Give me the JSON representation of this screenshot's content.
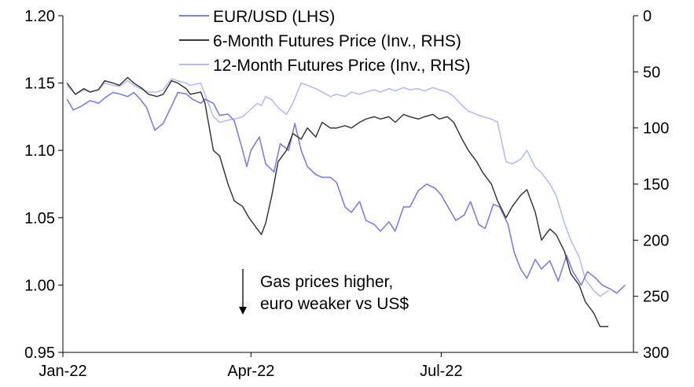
{
  "chart_data": {
    "type": "line",
    "x_axis": {
      "ticks": [
        {
          "date": "2022-01-01",
          "label": "Jan-22"
        },
        {
          "date": "2022-04-01",
          "label": "Apr-22"
        },
        {
          "date": "2022-07-01",
          "label": "Jul-22"
        }
      ],
      "range": [
        "2022-01-01",
        "2022-10-01"
      ]
    },
    "y_left": {
      "ticks": [
        "1.20",
        "1.15",
        "1.10",
        "1.05",
        "1.00",
        "0.95"
      ],
      "range": [
        0.95,
        1.2
      ]
    },
    "y_right": {
      "inverted": true,
      "ticks": [
        "0",
        "50",
        "100",
        "150",
        "200",
        "250",
        "300"
      ],
      "range": [
        0,
        300
      ]
    },
    "grid": false,
    "legend_position": "top",
    "colors": {
      "eurusd": "#7b7fe6",
      "fut6": "#3a3a3a",
      "fut12": "#b9bcf4",
      "axis": "#000000"
    },
    "series": [
      {
        "name": "EUR/USD (LHS)",
        "axis": "left",
        "points": [
          [
            "2022-01-03",
            1.138
          ],
          [
            "2022-01-06",
            1.13
          ],
          [
            "2022-01-10",
            1.133
          ],
          [
            "2022-01-14",
            1.137
          ],
          [
            "2022-01-18",
            1.135
          ],
          [
            "2022-01-22",
            1.14
          ],
          [
            "2022-01-25",
            1.143
          ],
          [
            "2022-01-28",
            1.142
          ],
          [
            "2022-02-01",
            1.14
          ],
          [
            "2022-02-04",
            1.143
          ],
          [
            "2022-02-07",
            1.138
          ],
          [
            "2022-02-10",
            1.132
          ],
          [
            "2022-02-14",
            1.115
          ],
          [
            "2022-02-18",
            1.12
          ],
          [
            "2022-02-22",
            1.133
          ],
          [
            "2022-02-25",
            1.143
          ],
          [
            "2022-03-01",
            1.142
          ],
          [
            "2022-03-04",
            1.138
          ],
          [
            "2022-03-08",
            1.135
          ],
          [
            "2022-03-10",
            1.138
          ],
          [
            "2022-03-14",
            1.135
          ],
          [
            "2022-03-17",
            1.126
          ],
          [
            "2022-03-21",
            1.127
          ],
          [
            "2022-03-24",
            1.122
          ],
          [
            "2022-03-28",
            1.1
          ],
          [
            "2022-03-30",
            1.088
          ],
          [
            "2022-04-01",
            1.1
          ],
          [
            "2022-04-05",
            1.11
          ],
          [
            "2022-04-08",
            1.09
          ],
          [
            "2022-04-12",
            1.084
          ],
          [
            "2022-04-15",
            1.105
          ],
          [
            "2022-04-19",
            1.1
          ],
          [
            "2022-04-22",
            1.12
          ],
          [
            "2022-04-25",
            1.1
          ],
          [
            "2022-04-28",
            1.088
          ],
          [
            "2022-05-02",
            1.082
          ],
          [
            "2022-05-05",
            1.08
          ],
          [
            "2022-05-09",
            1.08
          ],
          [
            "2022-05-12",
            1.076
          ],
          [
            "2022-05-16",
            1.058
          ],
          [
            "2022-05-19",
            1.054
          ],
          [
            "2022-05-23",
            1.062
          ],
          [
            "2022-05-26",
            1.048
          ],
          [
            "2022-05-30",
            1.045
          ],
          [
            "2022-06-02",
            1.04
          ],
          [
            "2022-06-06",
            1.047
          ],
          [
            "2022-06-09",
            1.04
          ],
          [
            "2022-06-13",
            1.058
          ],
          [
            "2022-06-16",
            1.058
          ],
          [
            "2022-06-20",
            1.07
          ],
          [
            "2022-06-24",
            1.075
          ],
          [
            "2022-06-28",
            1.072
          ],
          [
            "2022-07-01",
            1.067
          ],
          [
            "2022-07-05",
            1.056
          ],
          [
            "2022-07-08",
            1.048
          ],
          [
            "2022-07-12",
            1.052
          ],
          [
            "2022-07-15",
            1.062
          ],
          [
            "2022-07-19",
            1.045
          ],
          [
            "2022-07-22",
            1.042
          ],
          [
            "2022-07-26",
            1.06
          ],
          [
            "2022-07-29",
            1.058
          ],
          [
            "2022-08-02",
            1.045
          ],
          [
            "2022-08-05",
            1.024
          ],
          [
            "2022-08-08",
            1.012
          ],
          [
            "2022-08-11",
            1.005
          ],
          [
            "2022-08-15",
            1.019
          ],
          [
            "2022-08-18",
            1.012
          ],
          [
            "2022-08-22",
            1.018
          ],
          [
            "2022-08-26",
            1.003
          ],
          [
            "2022-08-30",
            1.022
          ],
          [
            "2022-09-02",
            1.01
          ],
          [
            "2022-09-06",
            1.0
          ],
          [
            "2022-09-09",
            1.01
          ],
          [
            "2022-09-13",
            1.005
          ],
          [
            "2022-09-16",
            1.0
          ],
          [
            "2022-09-20",
            0.997
          ],
          [
            "2022-09-23",
            0.994
          ],
          [
            "2022-09-27",
            1.0
          ]
        ]
      },
      {
        "name": "6-Month Futures Price (Inv., RHS)",
        "axis": "right",
        "points": [
          [
            "2022-01-03",
            60
          ],
          [
            "2022-01-07",
            70
          ],
          [
            "2022-01-11",
            65
          ],
          [
            "2022-01-14",
            68
          ],
          [
            "2022-01-18",
            66
          ],
          [
            "2022-01-21",
            58
          ],
          [
            "2022-01-25",
            60
          ],
          [
            "2022-01-28",
            62
          ],
          [
            "2022-02-01",
            55
          ],
          [
            "2022-02-04",
            60
          ],
          [
            "2022-02-08",
            65
          ],
          [
            "2022-02-11",
            70
          ],
          [
            "2022-02-15",
            72
          ],
          [
            "2022-02-18",
            70
          ],
          [
            "2022-02-22",
            58
          ],
          [
            "2022-02-25",
            60
          ],
          [
            "2022-03-01",
            65
          ],
          [
            "2022-03-03",
            70
          ],
          [
            "2022-03-08",
            68
          ],
          [
            "2022-03-10",
            78
          ],
          [
            "2022-03-14",
            120
          ],
          [
            "2022-03-17",
            125
          ],
          [
            "2022-03-21",
            150
          ],
          [
            "2022-03-24",
            165
          ],
          [
            "2022-03-28",
            170
          ],
          [
            "2022-03-31",
            180
          ],
          [
            "2022-04-04",
            190
          ],
          [
            "2022-04-06",
            195
          ],
          [
            "2022-04-08",
            185
          ],
          [
            "2022-04-11",
            160
          ],
          [
            "2022-04-14",
            130
          ],
          [
            "2022-04-18",
            120
          ],
          [
            "2022-04-21",
            105
          ],
          [
            "2022-04-25",
            110
          ],
          [
            "2022-04-28",
            100
          ],
          [
            "2022-05-02",
            108
          ],
          [
            "2022-05-05",
            95
          ],
          [
            "2022-05-09",
            100
          ],
          [
            "2022-05-12",
            100
          ],
          [
            "2022-05-16",
            98
          ],
          [
            "2022-05-19",
            100
          ],
          [
            "2022-05-23",
            95
          ],
          [
            "2022-05-26",
            92
          ],
          [
            "2022-05-30",
            90
          ],
          [
            "2022-06-02",
            92
          ],
          [
            "2022-06-06",
            90
          ],
          [
            "2022-06-09",
            95
          ],
          [
            "2022-06-13",
            88
          ],
          [
            "2022-06-16",
            90
          ],
          [
            "2022-06-20",
            92
          ],
          [
            "2022-06-23",
            90
          ],
          [
            "2022-06-27",
            88
          ],
          [
            "2022-06-30",
            92
          ],
          [
            "2022-07-04",
            90
          ],
          [
            "2022-07-07",
            95
          ],
          [
            "2022-07-11",
            110
          ],
          [
            "2022-07-14",
            120
          ],
          [
            "2022-07-18",
            130
          ],
          [
            "2022-07-21",
            140
          ],
          [
            "2022-07-25",
            150
          ],
          [
            "2022-07-28",
            165
          ],
          [
            "2022-08-01",
            180
          ],
          [
            "2022-08-04",
            170
          ],
          [
            "2022-08-08",
            160
          ],
          [
            "2022-08-11",
            155
          ],
          [
            "2022-08-15",
            175
          ],
          [
            "2022-08-18",
            200
          ],
          [
            "2022-08-22",
            190
          ],
          [
            "2022-08-25",
            195
          ],
          [
            "2022-08-29",
            210
          ],
          [
            "2022-09-01",
            230
          ],
          [
            "2022-09-05",
            240
          ],
          [
            "2022-09-08",
            255
          ],
          [
            "2022-09-12",
            265
          ],
          [
            "2022-09-15",
            277
          ],
          [
            "2022-09-19",
            277
          ]
        ]
      },
      {
        "name": "12-Month Futures Price (Inv., RHS)",
        "axis": "right",
        "points": [
          [
            "2022-01-03",
            62
          ],
          [
            "2022-01-07",
            70
          ],
          [
            "2022-01-11",
            66
          ],
          [
            "2022-01-14",
            68
          ],
          [
            "2022-01-18",
            66
          ],
          [
            "2022-01-21",
            60
          ],
          [
            "2022-01-25",
            62
          ],
          [
            "2022-01-28",
            63
          ],
          [
            "2022-02-01",
            58
          ],
          [
            "2022-02-04",
            62
          ],
          [
            "2022-02-08",
            66
          ],
          [
            "2022-02-11",
            68
          ],
          [
            "2022-02-15",
            68
          ],
          [
            "2022-02-18",
            66
          ],
          [
            "2022-02-22",
            56
          ],
          [
            "2022-02-25",
            58
          ],
          [
            "2022-03-01",
            60
          ],
          [
            "2022-03-03",
            62
          ],
          [
            "2022-03-08",
            60
          ],
          [
            "2022-03-10",
            70
          ],
          [
            "2022-03-14",
            90
          ],
          [
            "2022-03-17",
            95
          ],
          [
            "2022-03-21",
            93
          ],
          [
            "2022-03-24",
            92
          ],
          [
            "2022-03-28",
            90
          ],
          [
            "2022-03-31",
            85
          ],
          [
            "2022-04-04",
            78
          ],
          [
            "2022-04-06",
            80
          ],
          [
            "2022-04-08",
            72
          ],
          [
            "2022-04-11",
            75
          ],
          [
            "2022-04-14",
            82
          ],
          [
            "2022-04-18",
            88
          ],
          [
            "2022-04-21",
            78
          ],
          [
            "2022-04-25",
            60
          ],
          [
            "2022-04-28",
            62
          ],
          [
            "2022-05-02",
            65
          ],
          [
            "2022-05-05",
            68
          ],
          [
            "2022-05-09",
            72
          ],
          [
            "2022-05-12",
            70
          ],
          [
            "2022-05-16",
            72
          ],
          [
            "2022-05-19",
            68
          ],
          [
            "2022-05-23",
            70
          ],
          [
            "2022-05-26",
            68
          ],
          [
            "2022-05-30",
            66
          ],
          [
            "2022-06-02",
            68
          ],
          [
            "2022-06-06",
            65
          ],
          [
            "2022-06-09",
            67
          ],
          [
            "2022-06-13",
            64
          ],
          [
            "2022-06-16",
            66
          ],
          [
            "2022-06-20",
            65
          ],
          [
            "2022-06-23",
            67
          ],
          [
            "2022-06-27",
            64
          ],
          [
            "2022-06-30",
            66
          ],
          [
            "2022-07-04",
            68
          ],
          [
            "2022-07-07",
            72
          ],
          [
            "2022-07-11",
            80
          ],
          [
            "2022-07-14",
            85
          ],
          [
            "2022-07-18",
            88
          ],
          [
            "2022-07-21",
            90
          ],
          [
            "2022-07-25",
            92
          ],
          [
            "2022-07-28",
            95
          ],
          [
            "2022-08-01",
            130
          ],
          [
            "2022-08-04",
            132
          ],
          [
            "2022-08-08",
            128
          ],
          [
            "2022-08-11",
            120
          ],
          [
            "2022-08-15",
            135
          ],
          [
            "2022-08-18",
            140
          ],
          [
            "2022-08-22",
            150
          ],
          [
            "2022-08-25",
            160
          ],
          [
            "2022-08-29",
            185
          ],
          [
            "2022-09-01",
            200
          ],
          [
            "2022-09-05",
            215
          ],
          [
            "2022-09-08",
            235
          ],
          [
            "2022-09-12",
            245
          ],
          [
            "2022-09-15",
            250
          ],
          [
            "2022-09-19",
            245
          ]
        ]
      }
    ],
    "annotation": {
      "lines": [
        "Gas prices higher,",
        "euro weaker vs US$"
      ],
      "arrow": "down"
    }
  }
}
